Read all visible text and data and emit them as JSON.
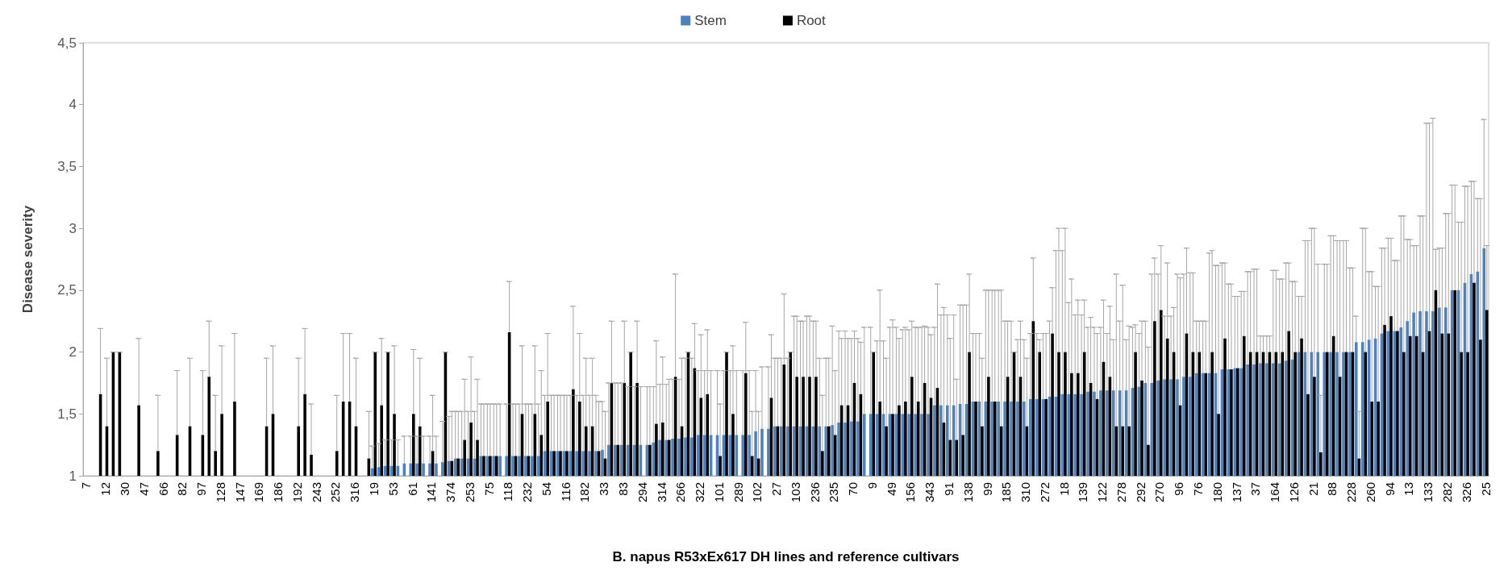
{
  "chart_data": {
    "type": "bar",
    "xlabel": "B. napus R53xEx617 DH lines and reference cultivars",
    "ylabel": "Disease severity",
    "legend": "top",
    "ylim": [
      1,
      4.5
    ],
    "yticks": [
      1,
      {
        "value": 1.5,
        "label": "1,5"
      },
      2,
      {
        "value": 2.5,
        "label": "2,5"
      },
      3,
      {
        "value": 3.5,
        "label": "3,5"
      },
      4,
      {
        "value": 4.5,
        "label": "4,5"
      }
    ],
    "categories": [
      "7",
      null,
      null,
      "12",
      null,
      null,
      "30",
      null,
      null,
      "47",
      null,
      null,
      "66",
      null,
      null,
      "82",
      null,
      null,
      "97",
      null,
      null,
      "128",
      null,
      null,
      "147",
      null,
      null,
      "169",
      null,
      null,
      "186",
      null,
      null,
      "192",
      null,
      null,
      "243",
      null,
      null,
      "252",
      null,
      null,
      "316",
      null,
      null,
      "19",
      null,
      null,
      "53",
      null,
      null,
      "61",
      null,
      null,
      "141",
      null,
      null,
      "374",
      null,
      null,
      "253",
      null,
      null,
      "75",
      null,
      null,
      "118",
      null,
      null,
      "232",
      null,
      null,
      "54",
      null,
      null,
      "116",
      null,
      null,
      "182",
      null,
      null,
      "33",
      null,
      null,
      "83",
      null,
      null,
      "294",
      null,
      null,
      "314",
      null,
      null,
      "266",
      null,
      null,
      "322",
      null,
      null,
      "101",
      null,
      null,
      "289",
      null,
      null,
      "102",
      null,
      null,
      "27",
      null,
      null,
      "103",
      null,
      null,
      "236",
      null,
      null,
      "235",
      null,
      null,
      "70",
      null,
      null,
      "9",
      null,
      null,
      "49",
      null,
      null,
      "156",
      null,
      null,
      "343",
      null,
      null,
      "91",
      null,
      null,
      "138",
      null,
      null,
      "99",
      null,
      null,
      "185",
      null,
      null,
      "310",
      null,
      null,
      "272",
      null,
      null,
      "18",
      null,
      null,
      "139",
      null,
      null,
      "122",
      null,
      null,
      "278",
      null,
      null,
      "292",
      null,
      null,
      "270",
      null,
      null,
      "96",
      null,
      null,
      "76",
      null,
      null,
      "180",
      null,
      null,
      "137",
      null,
      null,
      "37",
      null,
      null,
      "164",
      null,
      null,
      "126",
      null,
      null,
      "21",
      null,
      null,
      "88",
      null,
      null,
      "228",
      null,
      null,
      "260",
      null,
      null,
      "94",
      null,
      null,
      "13",
      null,
      null,
      "133",
      null,
      null,
      "282",
      null,
      null,
      "326",
      null,
      null,
      "25"
    ],
    "series": [
      {
        "name": "Stem",
        "color": "#4f81bd",
        "values": [
          null,
          null,
          null,
          null,
          null,
          null,
          null,
          null,
          null,
          null,
          null,
          null,
          null,
          null,
          null,
          null,
          null,
          null,
          null,
          null,
          null,
          null,
          null,
          null,
          null,
          null,
          null,
          null,
          null,
          null,
          null,
          null,
          null,
          null,
          null,
          null,
          null,
          null,
          null,
          null,
          null,
          null,
          null,
          null,
          null,
          1.06,
          1.07,
          1.08,
          1.08,
          1.08,
          1.1,
          1.1,
          1.1,
          1.1,
          1.1,
          1.1,
          1.11,
          1.12,
          1.14,
          1.14,
          1.14,
          1.14,
          1.16,
          1.16,
          1.16,
          1.16,
          1.16,
          1.16,
          1.16,
          1.16,
          1.16,
          1.16,
          1.2,
          1.2,
          1.2,
          1.2,
          1.2,
          1.2,
          1.2,
          1.2,
          1.2,
          1.21,
          1.25,
          1.25,
          1.25,
          1.25,
          1.25,
          1.25,
          1.25,
          1.27,
          1.29,
          1.29,
          1.3,
          1.3,
          1.31,
          1.31,
          1.33,
          1.33,
          1.33,
          1.33,
          1.33,
          1.33,
          1.33,
          1.33,
          1.33,
          1.36,
          1.38,
          1.38,
          1.4,
          1.4,
          1.4,
          1.4,
          1.4,
          1.4,
          1.4,
          1.4,
          1.4,
          1.41,
          1.43,
          1.43,
          1.44,
          1.44,
          1.5,
          1.5,
          1.5,
          1.5,
          1.5,
          1.5,
          1.5,
          1.5,
          1.5,
          1.5,
          1.5,
          1.57,
          1.57,
          1.57,
          1.57,
          1.58,
          1.58,
          1.6,
          1.6,
          1.6,
          1.6,
          1.6,
          1.6,
          1.6,
          1.6,
          1.6,
          1.62,
          1.62,
          1.62,
          1.64,
          1.64,
          1.66,
          1.66,
          1.66,
          1.66,
          1.68,
          1.68,
          1.69,
          1.69,
          1.69,
          1.69,
          1.69,
          1.71,
          1.72,
          1.75,
          1.75,
          1.77,
          1.78,
          1.78,
          1.78,
          1.8,
          1.8,
          1.83,
          1.83,
          1.83,
          1.83,
          1.86,
          1.86,
          1.87,
          1.87,
          1.9,
          1.9,
          1.91,
          1.91,
          1.91,
          1.91,
          1.93,
          1.94,
          2,
          2,
          2,
          2,
          2,
          2,
          2,
          2,
          2,
          2.08,
          2.08,
          2.1,
          2.11,
          2.15,
          2.17,
          2.17,
          2.2,
          2.25,
          2.32,
          2.33,
          2.33,
          2.33,
          2.36,
          2.36,
          2.5,
          2.5,
          2.56,
          2.63,
          2.65,
          2.84
        ],
        "errors": [
          null,
          null,
          null,
          null,
          null,
          null,
          null,
          null,
          null,
          null,
          null,
          null,
          null,
          null,
          null,
          null,
          null,
          null,
          null,
          null,
          null,
          null,
          null,
          null,
          null,
          null,
          null,
          null,
          null,
          null,
          null,
          null,
          null,
          null,
          null,
          null,
          null,
          null,
          null,
          null,
          null,
          null,
          null,
          null,
          null,
          [
            1.06,
            1.24
          ],
          [
            1.07,
            1.26
          ],
          [
            1.08,
            1.29
          ],
          [
            1.08,
            1.29
          ],
          [
            1.08,
            1.29
          ],
          [
            1.1,
            1.32
          ],
          [
            1.1,
            1.32
          ],
          [
            1.1,
            1.32
          ],
          [
            1.1,
            1.32
          ],
          [
            1.1,
            1.32
          ],
          [
            1.1,
            1.32
          ],
          [
            1.11,
            1.44
          ],
          [
            1.12,
            1.48
          ],
          [
            1.14,
            1.52
          ],
          [
            1.14,
            1.52
          ],
          [
            1.14,
            1.52
          ],
          [
            1.14,
            1.52
          ],
          [
            1.16,
            1.58
          ],
          [
            1.16,
            1.58
          ],
          [
            1.16,
            1.58
          ],
          [
            1.16,
            1.58
          ],
          [
            1.16,
            1.58
          ],
          [
            1.16,
            1.58
          ],
          [
            1.16,
            1.58
          ],
          [
            1.16,
            1.58
          ],
          [
            1.16,
            1.58
          ],
          [
            1.16,
            1.58
          ],
          [
            1.2,
            1.65
          ],
          [
            1.2,
            1.65
          ],
          [
            1.2,
            1.65
          ],
          [
            1.2,
            1.65
          ],
          [
            1.2,
            1.65
          ],
          [
            1.2,
            1.65
          ],
          [
            1.2,
            1.65
          ],
          [
            1.2,
            1.65
          ],
          [
            1.2,
            1.65
          ],
          [
            1.21,
            1.6
          ],
          [
            1.25,
            1.75
          ],
          [
            1.25,
            1.75
          ],
          [
            1.25,
            1.75
          ],
          [
            1.25,
            1.72
          ],
          [
            1.25,
            1.72
          ],
          [
            1.25,
            1.72
          ],
          [
            1.25,
            1.72
          ],
          [
            1.27,
            1.72
          ],
          [
            1.29,
            1.74
          ],
          [
            1.29,
            1.74
          ],
          [
            1.3,
            1.78
          ],
          [
            1.3,
            1.78
          ],
          [
            1.31,
            1.95
          ],
          [
            1.31,
            1.95
          ],
          [
            1.33,
            1.85
          ],
          [
            1.33,
            1.85
          ],
          [
            1.33,
            1.85
          ],
          [
            1.33,
            1.85
          ],
          [
            1.33,
            1.85
          ],
          [
            1.33,
            1.85
          ],
          [
            1.33,
            1.85
          ],
          [
            1.33,
            1.85
          ],
          [
            1.33,
            1.85
          ],
          [
            1.36,
            1.85
          ],
          [
            1.38,
            1.88
          ],
          [
            1.38,
            1.88
          ],
          [
            1.4,
            1.95
          ],
          [
            1.4,
            1.95
          ],
          [
            1.4,
            1.95
          ],
          [
            1.4,
            2.29
          ],
          [
            1.4,
            2.25
          ],
          [
            1.4,
            2.29
          ],
          [
            1.4,
            2.25
          ],
          [
            1.4,
            1.95
          ],
          [
            1.4,
            1.95
          ],
          [
            1.41,
            2.21
          ],
          [
            1.43,
            2.17
          ],
          [
            1.43,
            2.17
          ],
          [
            1.44,
            2.11
          ],
          [
            1.44,
            2.11
          ],
          [
            1.5,
            2.2
          ],
          [
            1.5,
            2.2
          ],
          [
            1.5,
            2.09
          ],
          [
            1.5,
            2.09
          ],
          [
            1.5,
            2.2
          ],
          [
            1.5,
            2.2
          ],
          [
            1.5,
            2.18
          ],
          [
            1.5,
            2.18
          ],
          [
            1.5,
            2.2
          ],
          [
            1.5,
            2.2
          ],
          [
            1.5,
            2.2
          ],
          [
            1.57,
            2.2
          ],
          [
            1.57,
            2.3
          ],
          [
            1.57,
            2.3
          ],
          [
            1.57,
            2.3
          ],
          [
            1.58,
            2.38
          ],
          [
            1.58,
            2.38
          ],
          [
            1.6,
            2.15
          ],
          [
            1.6,
            2.15
          ],
          [
            1.6,
            2.5
          ],
          [
            1.6,
            2.5
          ],
          [
            1.6,
            2.5
          ],
          [
            1.6,
            2.25
          ],
          [
            1.6,
            2.25
          ],
          [
            1.6,
            2.1
          ],
          [
            1.6,
            2.1
          ],
          [
            1.62,
            2.15
          ],
          [
            1.62,
            2.15
          ],
          [
            1.62,
            2.15
          ],
          [
            1.64,
            2.25
          ],
          [
            1.64,
            2.82
          ],
          [
            1.66,
            2.82
          ],
          [
            1.66,
            2.4
          ],
          [
            1.66,
            2.3
          ],
          [
            1.66,
            2.3
          ],
          [
            1.68,
            2.2
          ],
          [
            1.68,
            2.2
          ],
          [
            1.69,
            2.2
          ],
          [
            1.69,
            2.15
          ],
          [
            1.69,
            2.1
          ],
          [
            1.69,
            2.25
          ],
          [
            1.69,
            2.1
          ],
          [
            1.71,
            2.2
          ],
          [
            1.72,
            2.15
          ],
          [
            1.75,
            2.25
          ],
          [
            1.75,
            2.63
          ],
          [
            1.77,
            2.63
          ],
          [
            1.78,
            2.29
          ],
          [
            1.78,
            2.29
          ],
          [
            1.78,
            2.63
          ],
          [
            1.8,
            2.63
          ],
          [
            1.8,
            2.64
          ],
          [
            1.83,
            2.25
          ],
          [
            1.83,
            2.25
          ],
          [
            1.83,
            2.8
          ],
          [
            1.83,
            2.7
          ],
          [
            1.86,
            2.72
          ],
          [
            1.86,
            2.55
          ],
          [
            1.87,
            2.45
          ],
          [
            1.87,
            2.49
          ],
          [
            1.9,
            2.65
          ],
          [
            1.9,
            2.67
          ],
          [
            1.91,
            2.13
          ],
          [
            1.91,
            2.13
          ],
          [
            1.91,
            2.66
          ],
          [
            1.91,
            2.59
          ],
          [
            1.93,
            2.72
          ],
          [
            1.94,
            2.57
          ],
          [
            2,
            2.45
          ],
          [
            2,
            2.9
          ],
          [
            2,
            3
          ],
          [
            2,
            2.71
          ],
          [
            2,
            2.71
          ],
          [
            2,
            2.94
          ],
          [
            2,
            2.9
          ],
          [
            2,
            2.9
          ],
          [
            2,
            2.68
          ],
          [
            2.08,
            2.29
          ],
          [
            2.08,
            3
          ],
          [
            2.1,
            2.65
          ],
          [
            2.11,
            2.53
          ],
          [
            2.15,
            2.84
          ],
          [
            2.17,
            2.92
          ],
          [
            2.17,
            2.74
          ],
          [
            2.2,
            3.1
          ],
          [
            2.25,
            2.91
          ],
          [
            2.32,
            2.86
          ],
          [
            2.33,
            3.1
          ],
          [
            2.33,
            3.85
          ],
          [
            2.33,
            3.89
          ],
          [
            2.36,
            2.84
          ],
          [
            2.36,
            3.12
          ],
          [
            2.5,
            3.35
          ],
          [
            2.5,
            3.05
          ],
          [
            2.56,
            3.34
          ],
          [
            2.63,
            3.38
          ],
          [
            2.65,
            3.24
          ],
          [
            2.84,
            3.88
          ]
        ]
      },
      {
        "name": "Root",
        "color": "#000000",
        "values": [
          null,
          null,
          1.66,
          1.4,
          2,
          2,
          null,
          null,
          1.57,
          null,
          null,
          1.2,
          null,
          null,
          1.33,
          null,
          1.4,
          null,
          1.33,
          1.8,
          1.2,
          1.5,
          null,
          1.6,
          null,
          null,
          null,
          null,
          1.4,
          1.5,
          null,
          null,
          null,
          1.4,
          1.66,
          1.17,
          null,
          null,
          null,
          1.2,
          1.6,
          1.6,
          1.4,
          null,
          1.14,
          2,
          1.57,
          2,
          1.5,
          null,
          null,
          1.5,
          1.4,
          null,
          1.2,
          null,
          2,
          1.12,
          1.14,
          1.29,
          1.43,
          1.29,
          1.16,
          1.16,
          1.16,
          null,
          2.16,
          1.16,
          1.5,
          1.16,
          1.5,
          1.33,
          1.6,
          1.2,
          1.2,
          1.2,
          1.7,
          1.6,
          1.4,
          1.4,
          1.2,
          1.14,
          1.75,
          1.25,
          1.75,
          2,
          1.75,
          null,
          1.25,
          1.42,
          1.43,
          1.29,
          1.8,
          1.4,
          2,
          1.87,
          1.63,
          1.66,
          null,
          1.16,
          2,
          1.5,
          null,
          1.83,
          1.16,
          1.14,
          null,
          1.63,
          1.4,
          1.9,
          2,
          1.8,
          1.8,
          1.8,
          1.8,
          1.2,
          1.4,
          1.33,
          1.57,
          1.57,
          1.75,
          1.66,
          null,
          2,
          1.6,
          1.4,
          1.5,
          1.57,
          1.6,
          1.8,
          1.6,
          1.75,
          1.63,
          1.71,
          1.43,
          1.29,
          1.29,
          1.33,
          2,
          1.6,
          1.4,
          1.8,
          1.6,
          1.4,
          1.8,
          2,
          1.8,
          1.4,
          2.25,
          2,
          1.62,
          2.15,
          2,
          2,
          1.83,
          1.83,
          2,
          1.75,
          1.62,
          1.92,
          1.8,
          1.4,
          1.4,
          1.4,
          2,
          1.77,
          1.25,
          2.25,
          2.34,
          2.11,
          2,
          1.57,
          2.15,
          2,
          2,
          1.83,
          2,
          1.5,
          2.11,
          1.86,
          1.87,
          2.13,
          2,
          2,
          2,
          2,
          2,
          2,
          2.17,
          2,
          2.11,
          1.66,
          1.8,
          1.19,
          2,
          2.13,
          1.8,
          2,
          2,
          1.14,
          2,
          1.6,
          1.6,
          2.22,
          2.29,
          2.17,
          2,
          2.13,
          2.13,
          2,
          2.17,
          2.5,
          2.15,
          2.15,
          2.5,
          2,
          2,
          2.56,
          2.1,
          2.34
        ],
        "errors": [
          null,
          null,
          [
            1.66,
            2.19
          ],
          [
            1.4,
            1.95
          ],
          [
            2,
            2
          ],
          [
            2,
            2
          ],
          null,
          null,
          [
            1.57,
            2.11
          ],
          null,
          null,
          [
            1.2,
            1.65
          ],
          null,
          null,
          [
            1.33,
            1.85
          ],
          null,
          [
            1.4,
            1.95
          ],
          null,
          [
            1.33,
            1.85
          ],
          [
            1.8,
            2.25
          ],
          [
            1.2,
            1.65
          ],
          [
            1.5,
            2.05
          ],
          null,
          [
            1.6,
            2.15
          ],
          null,
          null,
          null,
          null,
          [
            1.4,
            1.95
          ],
          [
            1.5,
            2.05
          ],
          null,
          null,
          null,
          [
            1.4,
            1.95
          ],
          [
            1.66,
            2.19
          ],
          [
            1.17,
            1.58
          ],
          null,
          null,
          null,
          [
            1.2,
            1.65
          ],
          [
            1.6,
            2.15
          ],
          [
            1.6,
            2.15
          ],
          [
            1.4,
            1.95
          ],
          null,
          [
            1.14,
            1.52
          ],
          [
            2,
            2
          ],
          [
            1.57,
            2.11
          ],
          [
            2,
            2
          ],
          [
            1.5,
            2.05
          ],
          null,
          null,
          [
            1.5,
            2.02
          ],
          [
            1.4,
            1.95
          ],
          null,
          [
            1.2,
            1.65
          ],
          null,
          [
            2,
            2
          ],
          [
            1.12,
            1.52
          ],
          [
            1.14,
            1.52
          ],
          [
            1.29,
            1.78
          ],
          [
            1.43,
            1.96
          ],
          [
            1.29,
            1.78
          ],
          [
            1.16,
            1.58
          ],
          [
            1.16,
            1.58
          ],
          [
            1.16,
            1.58
          ],
          null,
          [
            2.16,
            2.57
          ],
          [
            1.16,
            1.58
          ],
          [
            1.5,
            2.05
          ],
          [
            1.16,
            1.58
          ],
          [
            1.5,
            2.05
          ],
          [
            1.33,
            1.85
          ],
          [
            1.6,
            2.15
          ],
          [
            1.2,
            1.65
          ],
          [
            1.2,
            1.65
          ],
          [
            1.2,
            1.65
          ],
          [
            1.7,
            2.37
          ],
          [
            1.6,
            2.15
          ],
          [
            1.4,
            1.95
          ],
          [
            1.4,
            1.95
          ],
          [
            1.2,
            1.6
          ],
          [
            1.14,
            1.52
          ],
          [
            1.75,
            2.25
          ],
          [
            1.25,
            1.75
          ],
          [
            1.75,
            2.25
          ],
          [
            2,
            2
          ],
          [
            1.75,
            2.25
          ],
          null,
          [
            1.25,
            1.72
          ],
          [
            1.42,
            2.09
          ],
          [
            1.43,
            1.96
          ],
          [
            1.29,
            1.78
          ],
          [
            1.8,
            2.63
          ],
          [
            1.4,
            1.95
          ],
          [
            2,
            2
          ],
          [
            1.87,
            2.23
          ],
          [
            1.63,
            2.14
          ],
          [
            1.66,
            2.18
          ],
          null,
          [
            1.16,
            1.58
          ],
          [
            2,
            2
          ],
          [
            1.5,
            2.05
          ],
          null,
          [
            1.83,
            2.24
          ],
          [
            1.16,
            1.52
          ],
          [
            1.14,
            1.52
          ],
          null,
          [
            1.63,
            2.14
          ],
          [
            1.4,
            1.95
          ],
          [
            1.9,
            2.47
          ],
          [
            2,
            2
          ],
          [
            1.8,
            2.29
          ],
          [
            1.8,
            2.25
          ],
          [
            1.8,
            2.29
          ],
          [
            1.8,
            2.25
          ],
          [
            1.2,
            1.65
          ],
          [
            1.4,
            1.95
          ],
          [
            1.33,
            1.85
          ],
          [
            1.57,
            2.11
          ],
          [
            1.57,
            2.11
          ],
          [
            1.75,
            2.17
          ],
          [
            1.66,
            2.08
          ],
          null,
          [
            2,
            2
          ],
          [
            1.6,
            2.5
          ],
          [
            1.4,
            1.95
          ],
          [
            1.5,
            2.26
          ],
          [
            1.57,
            2.11
          ],
          [
            1.6,
            2.2
          ],
          [
            1.8,
            2.25
          ],
          [
            1.6,
            2.2
          ],
          [
            1.75,
            2.21
          ],
          [
            1.63,
            2.14
          ],
          [
            1.71,
            2.55
          ],
          [
            1.43,
            2.36
          ],
          [
            1.29,
            2.11
          ],
          [
            1.29,
            1.78
          ],
          [
            1.33,
            2.38
          ],
          [
            2,
            2.63
          ],
          [
            1.6,
            2.15
          ],
          [
            1.4,
            1.95
          ],
          [
            1.8,
            2.5
          ],
          [
            1.6,
            2.5
          ],
          [
            1.4,
            2.5
          ],
          [
            1.8,
            2.25
          ],
          [
            2,
            2
          ],
          [
            1.8,
            2.25
          ],
          [
            1.4,
            1.95
          ],
          [
            2.25,
            2.76
          ],
          [
            2,
            2.1
          ],
          [
            1.62,
            2.15
          ],
          [
            2.15,
            2.52
          ],
          [
            2,
            3
          ],
          [
            2,
            3
          ],
          [
            1.83,
            2.59
          ],
          [
            1.83,
            2.42
          ],
          [
            2,
            2.42
          ],
          [
            1.75,
            2.28
          ],
          [
            1.62,
            2.15
          ],
          [
            1.92,
            2.42
          ],
          [
            1.8,
            2.37
          ],
          [
            1.4,
            2.63
          ],
          [
            1.4,
            2.54
          ],
          [
            1.4,
            2.21
          ],
          [
            2,
            2.22
          ],
          [
            1.77,
            2.25
          ],
          [
            1.25,
            2.04
          ],
          [
            2.25,
            2.76
          ],
          [
            2.34,
            2.86
          ],
          [
            2.11,
            2.72
          ],
          [
            2,
            2.36
          ],
          [
            1.57,
            2.6
          ],
          [
            2.15,
            2.84
          ],
          [
            2,
            2.64
          ],
          [
            2,
            2.25
          ],
          [
            1.83,
            2.25
          ],
          [
            2,
            2.82
          ],
          [
            1.5,
            2.7
          ],
          [
            2.11,
            2.72
          ],
          [
            1.86,
            2.55
          ],
          [
            1.87,
            2.45
          ],
          [
            2.13,
            2.49
          ],
          [
            2,
            2.65
          ],
          [
            2,
            2.67
          ],
          [
            2,
            2.13
          ],
          [
            2,
            2.13
          ],
          [
            2,
            2.66
          ],
          [
            2,
            2.59
          ],
          [
            2.17,
            2.72
          ],
          [
            2,
            2.57
          ],
          [
            2.11,
            2.45
          ],
          [
            1.66,
            2.9
          ],
          [
            1.8,
            3
          ],
          [
            1.19,
            1.65
          ],
          [
            2,
            2.71
          ],
          [
            2.13,
            2.94
          ],
          [
            1.8,
            2.9
          ],
          [
            2,
            2.9
          ],
          [
            2,
            2.68
          ],
          [
            1.14,
            1.52
          ],
          [
            2,
            3
          ],
          [
            1.6,
            2.65
          ],
          [
            1.6,
            2.53
          ],
          [
            2.22,
            2.84
          ],
          [
            2.29,
            2.92
          ],
          [
            2.17,
            2.74
          ],
          [
            2,
            3.1
          ],
          [
            2.13,
            2.91
          ],
          [
            2.13,
            2.86
          ],
          [
            2,
            3.1
          ],
          [
            2.17,
            3.85
          ],
          [
            2.5,
            2.83
          ],
          [
            2.15,
            2.84
          ],
          [
            2.15,
            3.12
          ],
          [
            2.5,
            3.35
          ],
          [
            2,
            3.05
          ],
          [
            2,
            3.34
          ],
          [
            2.56,
            3.38
          ],
          [
            2.1,
            3.24
          ],
          [
            2.34,
            2.86
          ]
        ]
      }
    ]
  }
}
